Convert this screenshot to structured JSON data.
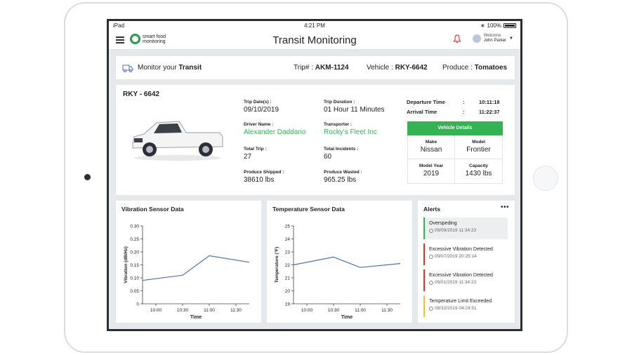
{
  "status": {
    "device": "iPad",
    "time": "4:21 PM",
    "battery": "100%"
  },
  "app": {
    "title": "Transit Monitoring",
    "logo_line1": "smart food",
    "logo_line2": "monitoring",
    "welcome": "Welcome",
    "user_name": "John Parker"
  },
  "transit": {
    "label": "Monitor your",
    "label_bold": "Transit",
    "trip_label": "Trip# :",
    "trip_value": "AKM-1124",
    "vehicle_label": "Vehicle :",
    "vehicle_value": "RKY-6642",
    "produce_label": "Produce :",
    "produce_value": "Tomatoes"
  },
  "vehicle": {
    "plate": "RKY - 6642",
    "fields": {
      "trip_date_label": "Trip Date(s) :",
      "trip_date": "09/10/2019",
      "trip_duration_label": "Trip Duration :",
      "trip_duration": "01 Hour 11 Minutes",
      "driver_label": "Driver Name :",
      "driver": "Alexander Daddario",
      "transporter_label": "Transporter :",
      "transporter": "Rocky's Fleet Inc",
      "total_trip_label": "Total Trip :",
      "total_trip": "27",
      "incidents_label": "Total Incidents :",
      "incidents": "60",
      "shipped_label": "Produce Shipped :",
      "shipped": "38610 lbs",
      "wasted_label": "Produce Wasted :",
      "wasted": "965.25 lbs"
    },
    "departure_label": "Departure Time",
    "departure": "10:11:18",
    "arrival_label": "Arrival Time",
    "arrival": "11:22:37",
    "details": {
      "header": "Vehicle Details",
      "make_label": "Make",
      "make": "Nissan",
      "model_label": "Model",
      "model": "Frontier",
      "year_label": "Model Year",
      "year": "2019",
      "capacity_label": "Capacity",
      "capacity": "1430 lbs"
    }
  },
  "charts": {
    "vibration_title": "Vibration Sensor Data",
    "temperature_title": "Temperature Sensor Data"
  },
  "chart_data": [
    {
      "type": "line",
      "title": "Vibration Sensor Data",
      "xlabel": "Time",
      "ylabel": "Vibration (dB/Hz)",
      "x": [
        "10:00",
        "10:30",
        "11:00",
        "11:30"
      ],
      "ylim": [
        0,
        0.3
      ],
      "yticks": [
        "0",
        "0.05",
        "0.10",
        "0.15",
        "0.20",
        "0.25",
        "0.30"
      ],
      "points": [
        {
          "x": "9:45",
          "y": 0.09
        },
        {
          "x": "10:30",
          "y": 0.11
        },
        {
          "x": "11:00",
          "y": 0.185
        },
        {
          "x": "11:45",
          "y": 0.16
        }
      ],
      "color": "#4a74ad"
    },
    {
      "type": "line",
      "title": "Temperature Sensor Data",
      "xlabel": "Time",
      "ylabel": "Temperature (°F)",
      "x": [
        "10:00",
        "10:30",
        "11:00",
        "11:30"
      ],
      "ylim": [
        19,
        25
      ],
      "yticks": [
        "19",
        "20",
        "21",
        "22",
        "23",
        "24",
        "25"
      ],
      "points": [
        {
          "x": "9:45",
          "y": 22.0
        },
        {
          "x": "10:30",
          "y": 22.6
        },
        {
          "x": "11:00",
          "y": 21.8
        },
        {
          "x": "11:45",
          "y": 22.1
        }
      ],
      "color": "#4a74ad"
    }
  ],
  "alerts": {
    "title": "Alerts",
    "items": [
      {
        "title": "Overspeding",
        "time": "09/09/2019  11:34:23",
        "color": "#34b254"
      },
      {
        "title": "Excessive Vibration Detected",
        "time": "09/07/2019  20:25:14",
        "color": "#d9342b"
      },
      {
        "title": "Excessive Vibration Detected",
        "time": "09/01/2019  11:34:23",
        "color": "#d9342b"
      },
      {
        "title": "Temperature Limit Exceeded",
        "time": "08/32/2019  04:24:51",
        "color": "#f2c12e"
      }
    ]
  }
}
